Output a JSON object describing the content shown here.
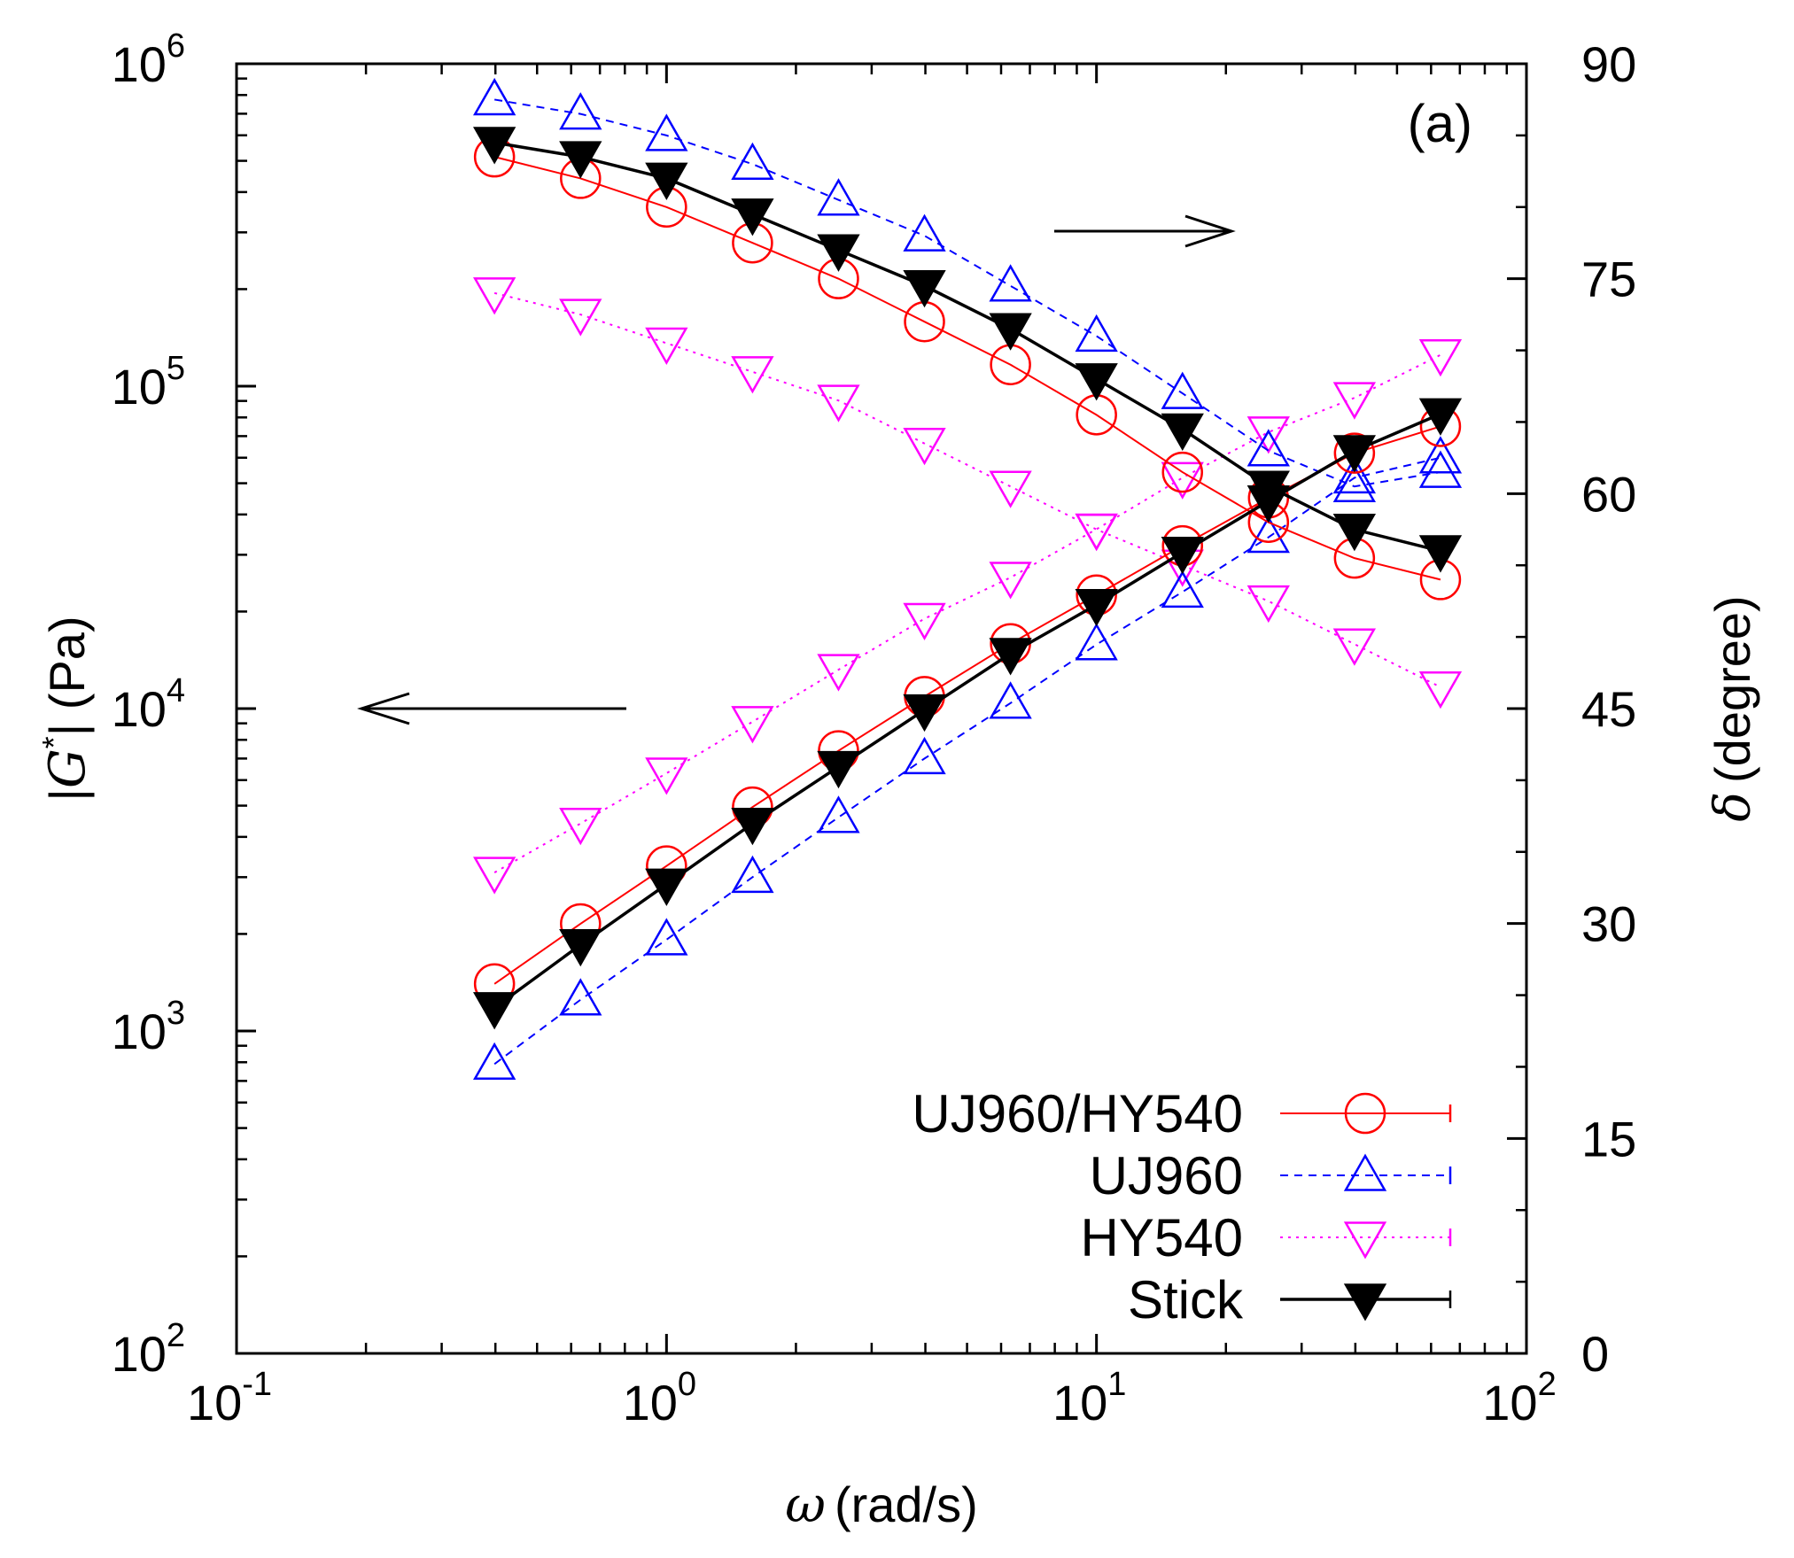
{
  "chart_data": {
    "type": "line",
    "panel_label": "(a)",
    "x_axis": {
      "symbol": "ω",
      "unit_label": "(rad/s)",
      "scale": "log",
      "range": [
        0.1,
        100
      ],
      "tick_labels": [
        {
          "value": 0.1,
          "base": "10",
          "exp": "-1"
        },
        {
          "value": 1,
          "base": "10",
          "exp": "0"
        },
        {
          "value": 10,
          "base": "10",
          "exp": "1"
        },
        {
          "value": 100,
          "base": "10",
          "exp": "2"
        }
      ]
    },
    "y_axis_left": {
      "label_prefix": "|",
      "symbol": "G",
      "superscript": "*",
      "label_suffix": "| (Pa)",
      "scale": "log",
      "range": [
        100,
        1000000
      ],
      "tick_labels": [
        {
          "value": 100,
          "base": "10",
          "exp": "2"
        },
        {
          "value": 1000,
          "base": "10",
          "exp": "3"
        },
        {
          "value": 10000,
          "base": "10",
          "exp": "4"
        },
        {
          "value": 100000,
          "base": "10",
          "exp": "5"
        },
        {
          "value": 1000000,
          "base": "10",
          "exp": "6"
        }
      ]
    },
    "y_axis_right": {
      "symbol": "δ",
      "unit_label": "(degree)",
      "scale": "linear",
      "range": [
        0,
        90
      ],
      "ticks": [
        "0",
        "15",
        "30",
        "45",
        "60",
        "75",
        "90"
      ]
    },
    "annotations": [
      {
        "type": "arrow",
        "direction": "left",
        "meaning": "|G*| curves refer to left axis"
      },
      {
        "type": "arrow",
        "direction": "right",
        "meaning": "δ curves refer to right axis"
      }
    ],
    "x": [
      0.398,
      0.631,
      1.0,
      1.585,
      2.512,
      3.981,
      6.31,
      10.0,
      15.85,
      25.12,
      39.81,
      63.1
    ],
    "series": [
      {
        "name": "UJ960/HY540",
        "key": "uj960hy540",
        "color": "#ff0000",
        "marker": "open-circle",
        "line": "solid",
        "modulus": [
          1400,
          2150,
          3250,
          4950,
          7400,
          10900,
          15900,
          22500,
          32000,
          45000,
          62000,
          75000
        ],
        "delta": [
          83.5,
          82.0,
          80.0,
          77.5,
          75.0,
          72.0,
          69.0,
          65.5,
          61.5,
          58.0,
          55.5,
          54.0
        ]
      },
      {
        "name": "UJ960",
        "key": "uj960",
        "color": "#0000ff",
        "marker": "open-triangle-up",
        "line": "dashed",
        "modulus": [
          790,
          1250,
          1920,
          3000,
          4600,
          7000,
          10400,
          15800,
          23000,
          34000,
          52000,
          60000
        ],
        "delta": [
          87.5,
          86.5,
          85.0,
          83.0,
          80.5,
          78.0,
          74.5,
          71.0,
          67.0,
          63.0,
          60.5,
          61.5
        ]
      },
      {
        "name": "HY540",
        "key": "hy540",
        "color": "#ff00ff",
        "marker": "open-triangle-down",
        "line": "dotted",
        "modulus": [
          3100,
          4400,
          6300,
          9100,
          13200,
          19000,
          25500,
          36000,
          52000,
          72000,
          92000,
          125000
        ],
        "delta": [
          74.0,
          72.5,
          70.5,
          68.5,
          66.5,
          63.5,
          60.5,
          57.5,
          55.0,
          52.5,
          49.5,
          46.5
        ]
      },
      {
        "name": "Stick",
        "key": "stick",
        "color": "#000000",
        "marker": "filled-triangle-down",
        "line": "solid",
        "modulus": [
          1180,
          1850,
          2850,
          4400,
          6600,
          9900,
          14800,
          21000,
          30500,
          44000,
          63000,
          82000
        ],
        "delta": [
          84.5,
          83.5,
          82.0,
          79.5,
          77.0,
          74.5,
          71.5,
          68.0,
          64.5,
          60.5,
          57.5,
          56.0
        ]
      }
    ],
    "legend": {
      "placement": "bottom-right",
      "entries": [
        "UJ960/HY540",
        "UJ960",
        "HY540",
        "Stick"
      ]
    }
  }
}
